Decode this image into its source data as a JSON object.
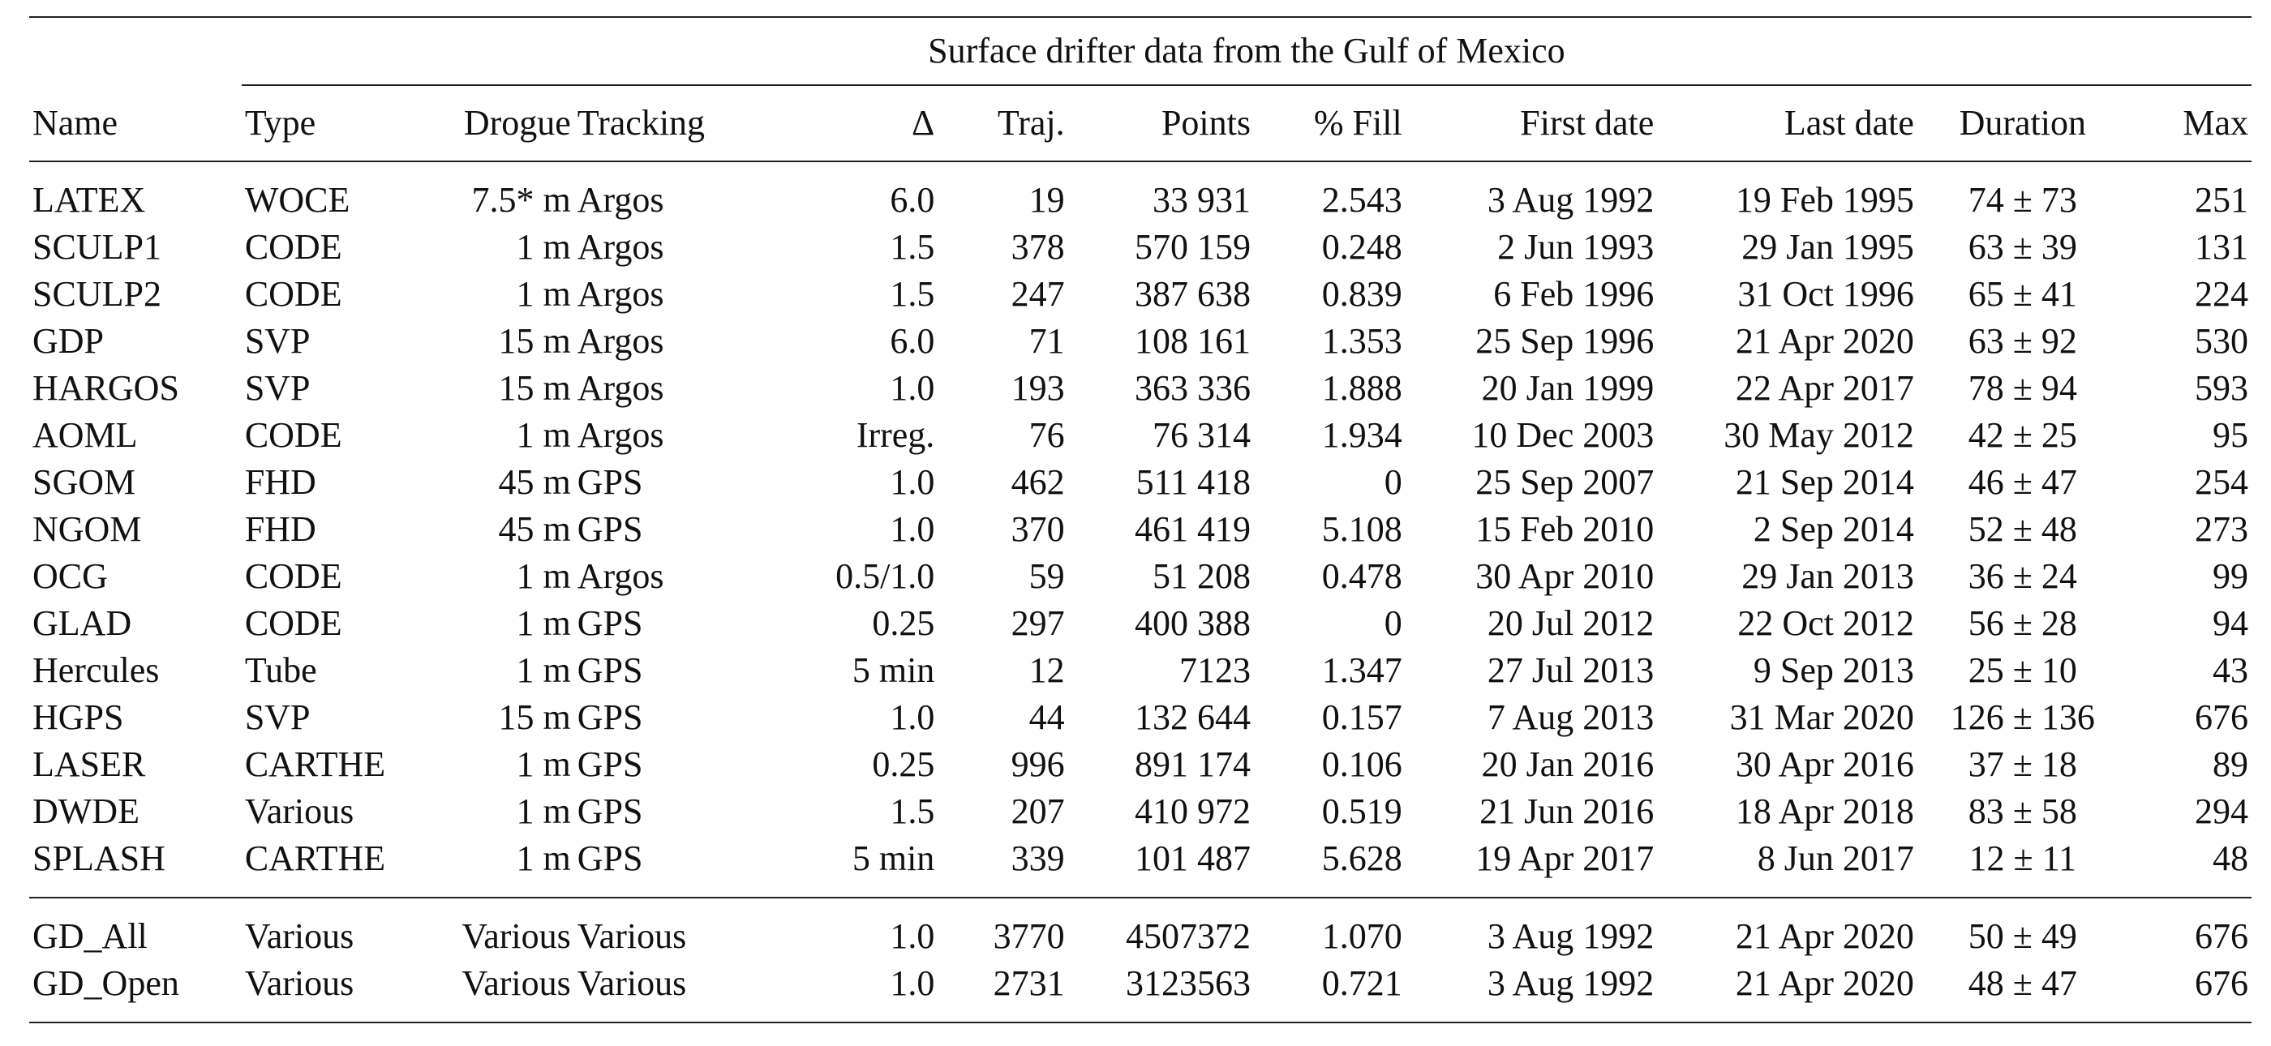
{
  "table": {
    "caption": "Surface drifter data from the Gulf of Mexico",
    "headers": [
      "Name",
      "Type",
      "Drogue",
      "Tracking",
      "Δ",
      "Traj.",
      "Points",
      "% Fill",
      "First date",
      "Last date",
      "Duration",
      "Max"
    ],
    "rows": [
      [
        "LATEX",
        "WOCE",
        "7.5* m",
        "Argos",
        "6.0",
        "19",
        "33 931",
        "2.543",
        "3 Aug 1992",
        "19 Feb 1995",
        "74 ± 73",
        "251"
      ],
      [
        "SCULP1",
        "CODE",
        "1 m",
        "Argos",
        "1.5",
        "378",
        "570 159",
        "0.248",
        "2 Jun 1993",
        "29 Jan 1995",
        "63 ± 39",
        "131"
      ],
      [
        "SCULP2",
        "CODE",
        "1 m",
        "Argos",
        "1.5",
        "247",
        "387 638",
        "0.839",
        "6 Feb 1996",
        "31 Oct 1996",
        "65 ± 41",
        "224"
      ],
      [
        "GDP",
        "SVP",
        "15 m",
        "Argos",
        "6.0",
        "71",
        "108 161",
        "1.353",
        "25 Sep 1996",
        "21 Apr 2020",
        "63 ± 92",
        "530"
      ],
      [
        "HARGOS",
        "SVP",
        "15 m",
        "Argos",
        "1.0",
        "193",
        "363 336",
        "1.888",
        "20 Jan 1999",
        "22 Apr 2017",
        "78 ± 94",
        "593"
      ],
      [
        "AOML",
        "CODE",
        "1 m",
        "Argos",
        "Irreg.",
        "76",
        "76 314",
        "1.934",
        "10 Dec 2003",
        "30 May 2012",
        "42 ± 25",
        "95"
      ],
      [
        "SGOM",
        "FHD",
        "45 m",
        "GPS",
        "1.0",
        "462",
        "511 418",
        "0",
        "25 Sep 2007",
        "21 Sep 2014",
        "46 ± 47",
        "254"
      ],
      [
        "NGOM",
        "FHD",
        "45 m",
        "GPS",
        "1.0",
        "370",
        "461 419",
        "5.108",
        "15 Feb 2010",
        "2 Sep 2014",
        "52 ± 48",
        "273"
      ],
      [
        "OCG",
        "CODE",
        "1 m",
        "Argos",
        "0.5/1.0",
        "59",
        "51 208",
        "0.478",
        "30 Apr 2010",
        "29 Jan 2013",
        "36 ± 24",
        "99"
      ],
      [
        "GLAD",
        "CODE",
        "1 m",
        "GPS",
        "0.25",
        "297",
        "400 388",
        "0",
        "20 Jul 2012",
        "22 Oct 2012",
        "56 ± 28",
        "94"
      ],
      [
        "Hercules",
        "Tube",
        "1 m",
        "GPS",
        "5 min",
        "12",
        "7123",
        "1.347",
        "27 Jul 2013",
        "9 Sep 2013",
        "25 ± 10",
        "43"
      ],
      [
        "HGPS",
        "SVP",
        "15 m",
        "GPS",
        "1.0",
        "44",
        "132 644",
        "0.157",
        "7 Aug 2013",
        "31 Mar 2020",
        "126 ± 136",
        "676"
      ],
      [
        "LASER",
        "CARTHE",
        "1 m",
        "GPS",
        "0.25",
        "996",
        "891 174",
        "0.106",
        "20 Jan 2016",
        "30 Apr 2016",
        "37 ± 18",
        "89"
      ],
      [
        "DWDE",
        "Various",
        "1 m",
        "GPS",
        "1.5",
        "207",
        "410 972",
        "0.519",
        "21 Jun 2016",
        "18 Apr 2018",
        "83 ± 58",
        "294"
      ],
      [
        "SPLASH",
        "CARTHE",
        "1 m",
        "GPS",
        "5 min",
        "339",
        "101 487",
        "5.628",
        "19 Apr 2017",
        "8 Jun 2017",
        "12 ± 11",
        "48"
      ]
    ],
    "summary_rows": [
      [
        "GD_All",
        "Various",
        "Various",
        "Various",
        "1.0",
        "3770",
        "4507372",
        "1.070",
        "3 Aug 1992",
        "21 Apr 2020",
        "50 ± 49",
        "676"
      ],
      [
        "GD_Open",
        "Various",
        "Various",
        "Various",
        "1.0",
        "2731",
        "3123563",
        "0.721",
        "3 Aug 1992",
        "21 Apr 2020",
        "48 ± 47",
        "676"
      ]
    ]
  }
}
